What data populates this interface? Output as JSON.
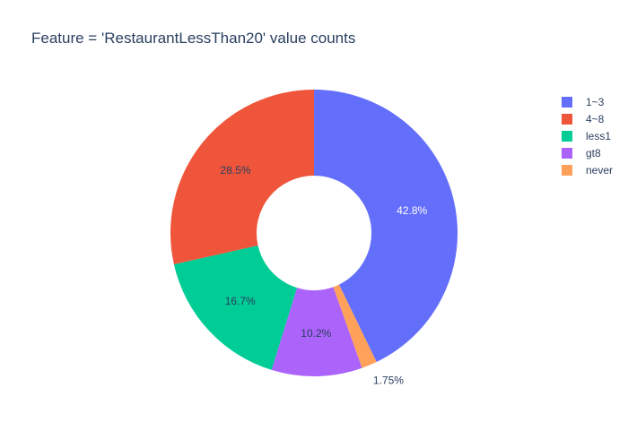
{
  "title": "Feature = 'RestaurantLessThan20' value counts",
  "chart_data": {
    "type": "pie",
    "hole": 0.4,
    "direction": "clockwise",
    "start_angle_deg": 0,
    "legend_position": "top-right",
    "title": "Feature = 'RestaurantLessThan20' value counts",
    "slices": [
      {
        "label": "1~3",
        "value": 42.8,
        "percent_label": "42.8%",
        "color": "#636efa",
        "text_color": "#ffffff",
        "label_position": "inside"
      },
      {
        "label": "never",
        "value": 1.75,
        "percent_label": "1.75%",
        "color": "#ffa15a",
        "text_color": "#2a3f5f",
        "label_position": "outside"
      },
      {
        "label": "gt8",
        "value": 10.2,
        "percent_label": "10.2%",
        "color": "#ab63fa",
        "text_color": "#2a3f5f",
        "label_position": "inside"
      },
      {
        "label": "less1",
        "value": 16.7,
        "percent_label": "16.7%",
        "color": "#00cc96",
        "text_color": "#2a3f5f",
        "label_position": "inside"
      },
      {
        "label": "4~8",
        "value": 28.5,
        "percent_label": "28.5%",
        "color": "#ef553b",
        "text_color": "#2a3f5f",
        "label_position": "inside"
      }
    ]
  },
  "legend": {
    "items": [
      {
        "label": "1~3",
        "color": "#636efa"
      },
      {
        "label": "4~8",
        "color": "#ef553b"
      },
      {
        "label": "less1",
        "color": "#00cc96"
      },
      {
        "label": "gt8",
        "color": "#ab63fa"
      },
      {
        "label": "never",
        "color": "#ffa15a"
      }
    ]
  }
}
